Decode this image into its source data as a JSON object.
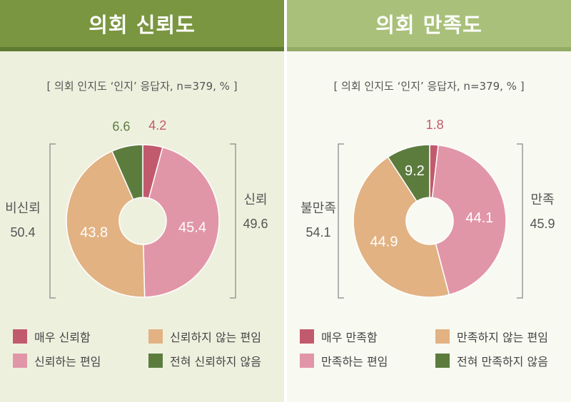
{
  "colors": {
    "very": "#c25a6e",
    "somewhat": "#e196a8",
    "not_much": "#e2b283",
    "not_at_all": "#5c7c3e"
  },
  "trust": {
    "title": "의회 신뢰도",
    "subtitle": "[ 의회 인지도 ‘인지’ 응답자, n=379, % ]",
    "bracket_left": {
      "label": "비신뢰",
      "value": "50.4"
    },
    "bracket_right": {
      "label": "신뢰",
      "value": "49.6"
    },
    "legend": [
      "매우 신뢰함",
      "신뢰하지 않는 편임",
      "신뢰하는 편임",
      "전혀 신뢰하지 않음"
    ]
  },
  "satisfaction": {
    "title": "의회 만족도",
    "subtitle": "[ 의회 인지도 ‘인지’ 응답자, n=379, % ]",
    "bracket_left": {
      "label": "불만족",
      "value": "54.1"
    },
    "bracket_right": {
      "label": "만족",
      "value": "45.9"
    },
    "legend": [
      "매우 만족함",
      "만족하지 않는 편임",
      "만족하는 편임",
      "전혀 만족하지 않음"
    ]
  },
  "chart_data": [
    {
      "type": "pie",
      "title": "의회 신뢰도",
      "categories": [
        "매우 신뢰함",
        "신뢰하는 편임",
        "신뢰하지 않는 편임",
        "전혀 신뢰하지 않음"
      ],
      "values": [
        4.2,
        45.4,
        43.8,
        6.6
      ],
      "labels": [
        "4.2",
        "45.4",
        "43.8",
        "6.6"
      ]
    },
    {
      "type": "pie",
      "title": "의회 만족도",
      "categories": [
        "매우 만족함",
        "만족하는 편임",
        "만족하지 않는 편임",
        "전혀 만족하지 않음"
      ],
      "values": [
        1.8,
        44.1,
        44.9,
        9.2
      ],
      "labels": [
        "1.8",
        "44.1",
        "44.9",
        "9.2"
      ]
    }
  ]
}
